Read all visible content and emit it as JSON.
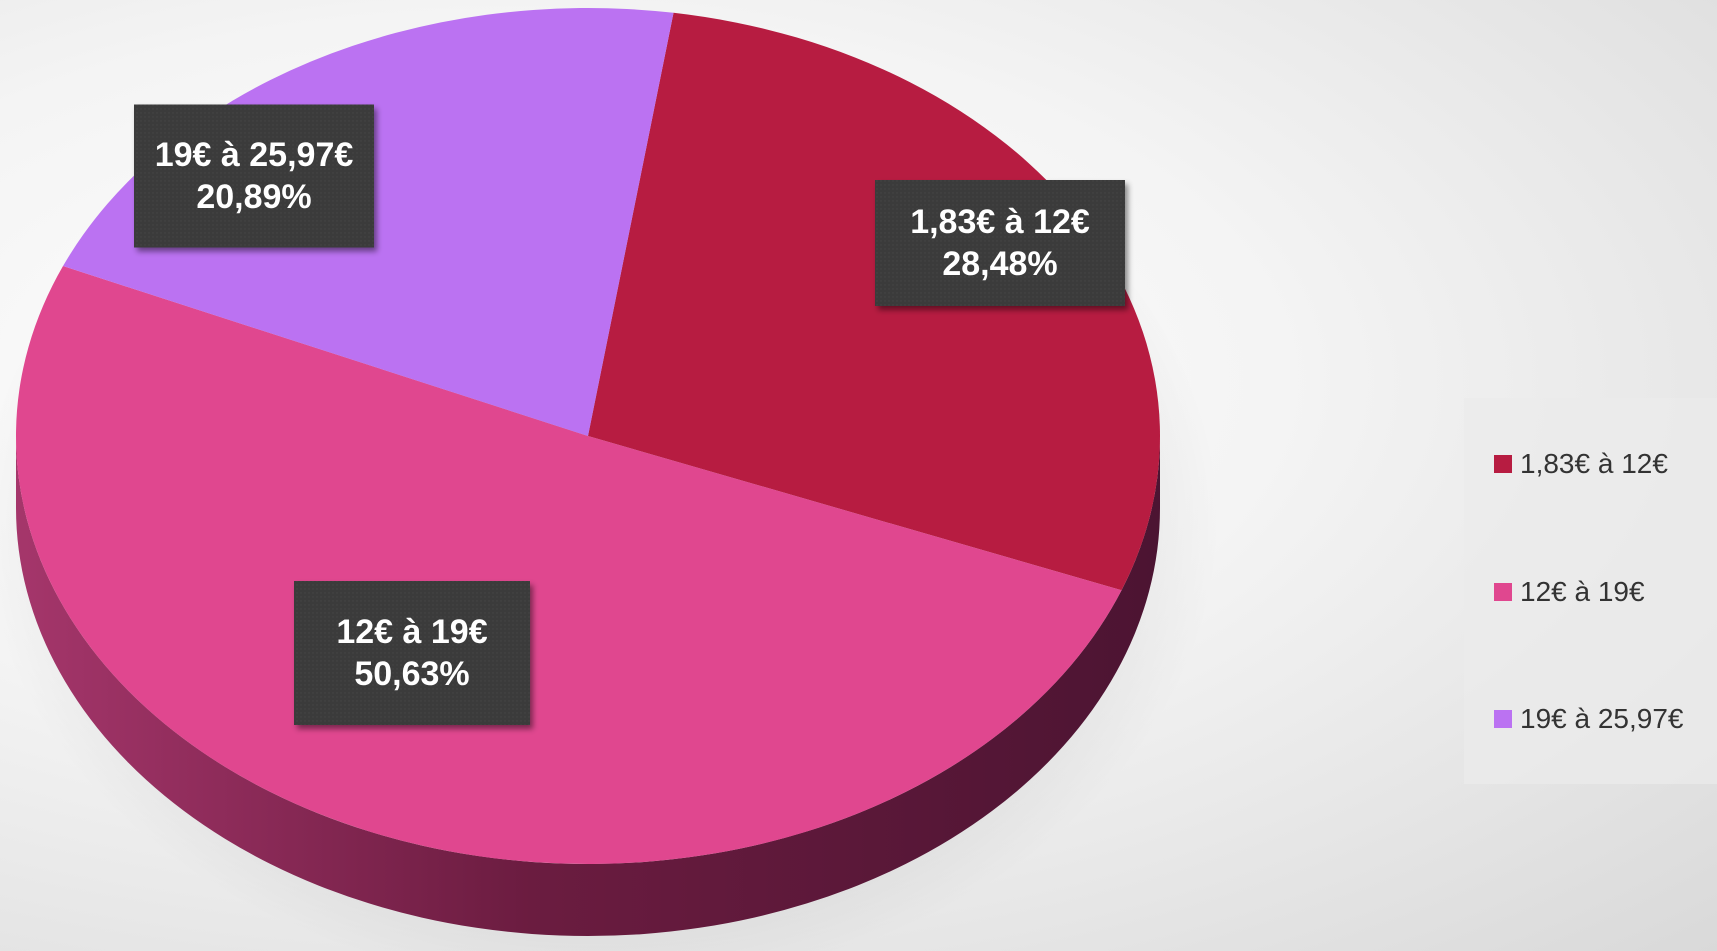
{
  "chart_data": {
    "type": "pie",
    "title": "",
    "slices": [
      {
        "label": "1,83€ à 12€",
        "value": 28.48,
        "value_label": "28,48%",
        "color": "#b71c41"
      },
      {
        "label": "12€ à 19€",
        "value": 50.63,
        "value_label": "50,63%",
        "color": "#e0478f"
      },
      {
        "label": "19€ à 25,97€",
        "value": 20.89,
        "value_label": "20,89%",
        "color": "#bb72f2"
      }
    ],
    "start_angle_deg": 8.6,
    "direction": "clockwise",
    "style": "3d",
    "legend_position": "right"
  }
}
